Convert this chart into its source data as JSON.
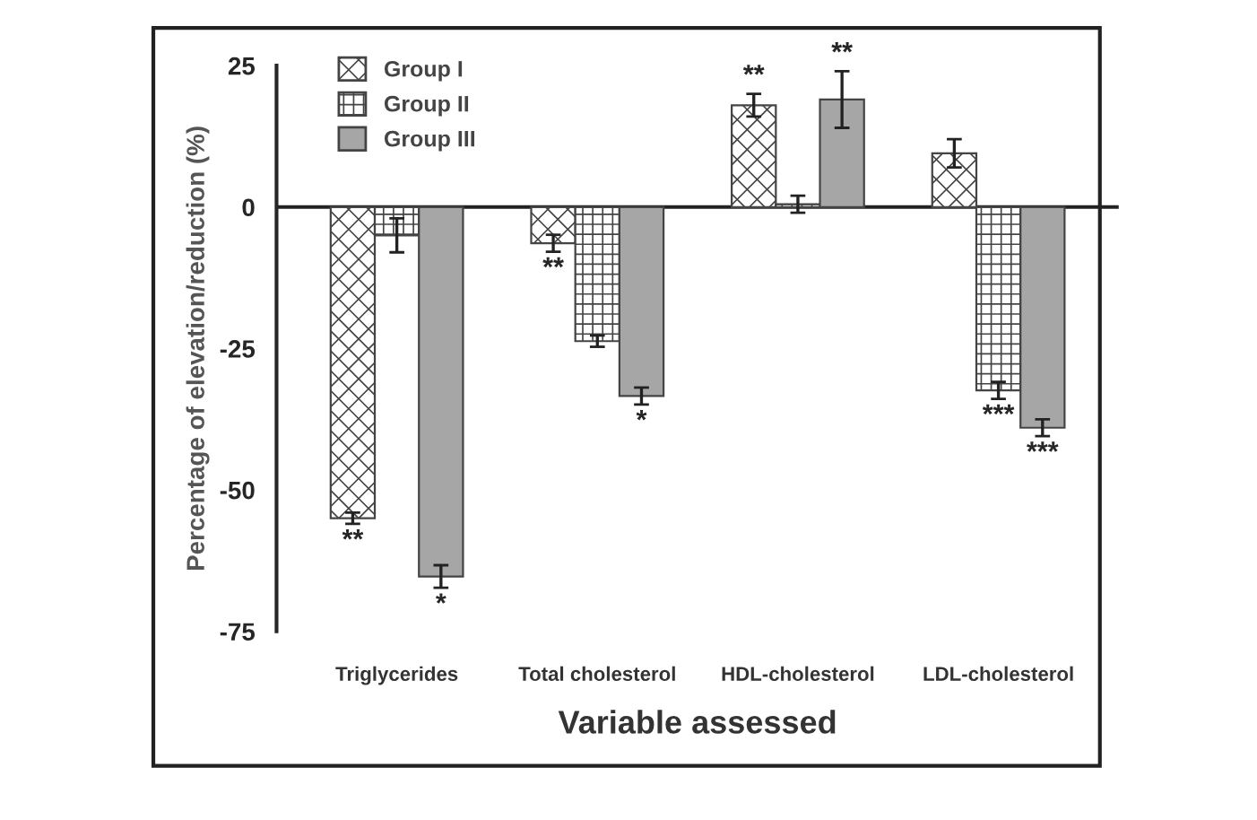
{
  "chart_data": {
    "type": "bar",
    "xlabel": "Variable assessed",
    "ylabel": "Percentage of elevation/reduction (%)",
    "categories": [
      "Triglycerides",
      "Total cholesterol",
      "HDL-cholesterol",
      "LDL-cholesterol"
    ],
    "series": [
      {
        "name": "Group I",
        "color": "#444444",
        "values": [
          -55,
          -6.4,
          18,
          9.5
        ],
        "errors": [
          1,
          1.5,
          2,
          2.5
        ],
        "value_labels": [
          "**",
          "**",
          "**",
          null
        ]
      },
      {
        "name": "Group II",
        "color": "#444444",
        "values": [
          -5,
          -23.7,
          0.5,
          -32.4
        ],
        "errors": [
          3,
          1,
          1.5,
          1.5
        ],
        "value_labels": [
          null,
          null,
          null,
          "***"
        ]
      },
      {
        "name": "Group III",
        "color": "#a6a6a6",
        "values": [
          -65.3,
          -33.4,
          19,
          -39
        ],
        "errors": [
          2,
          1.5,
          5,
          1.5
        ],
        "value_labels": [
          "*",
          "*",
          "**",
          "***"
        ]
      }
    ],
    "ylim": [
      -75,
      25
    ],
    "yticks": [
      -75,
      -50,
      -25,
      0,
      25
    ],
    "ref_lines": [
      {
        "axis": "y",
        "value": 0
      }
    ],
    "legend": "top left",
    "grid": false
  }
}
